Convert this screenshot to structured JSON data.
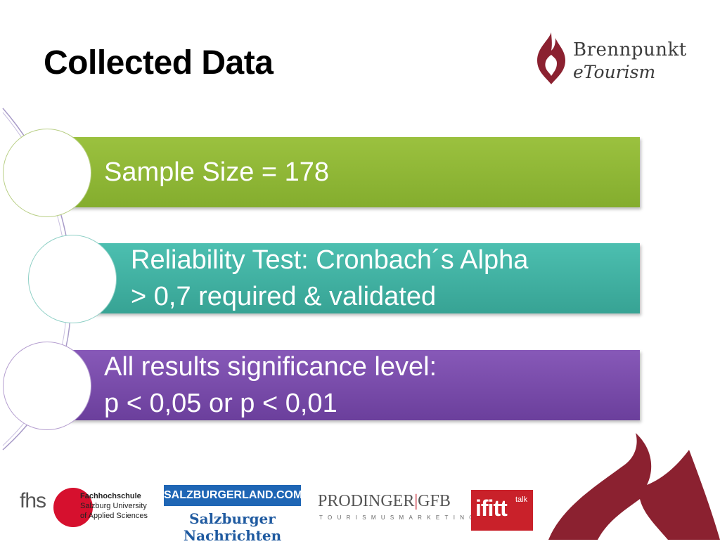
{
  "slide": {
    "title": "Collected Data"
  },
  "brand": {
    "line1": "Brennpunkt",
    "line2": "eTourism",
    "color": "#8b2130"
  },
  "items": [
    {
      "lines": [
        "Sample Size = 178"
      ],
      "color": "#8fb935"
    },
    {
      "lines": [
        "Reliability Test: Cronbach´s Alpha",
        "> 0,7 required & validated"
      ],
      "color": "#40b1a3"
    },
    {
      "lines": [
        "All results significance level:",
        "p < 0,05 or p < 0,01"
      ],
      "color": "#7a4caa"
    }
  ],
  "footer": {
    "fhs": {
      "word": "fhs",
      "line1": "Fachhochschule",
      "line2": "Salzburg University",
      "line3": "of Applied Sciences"
    },
    "salzburgerland": {
      "band": "SALZBURGERLAND.COM",
      "paper": "Salzburger Nachrichten"
    },
    "prodinger": {
      "name1": "PRODINGER",
      "separator": "|",
      "name2": "GFB",
      "tagline": "TOURISMUSMARKETING"
    },
    "ifitt": {
      "word": "ifitt",
      "sup": "talk"
    }
  }
}
